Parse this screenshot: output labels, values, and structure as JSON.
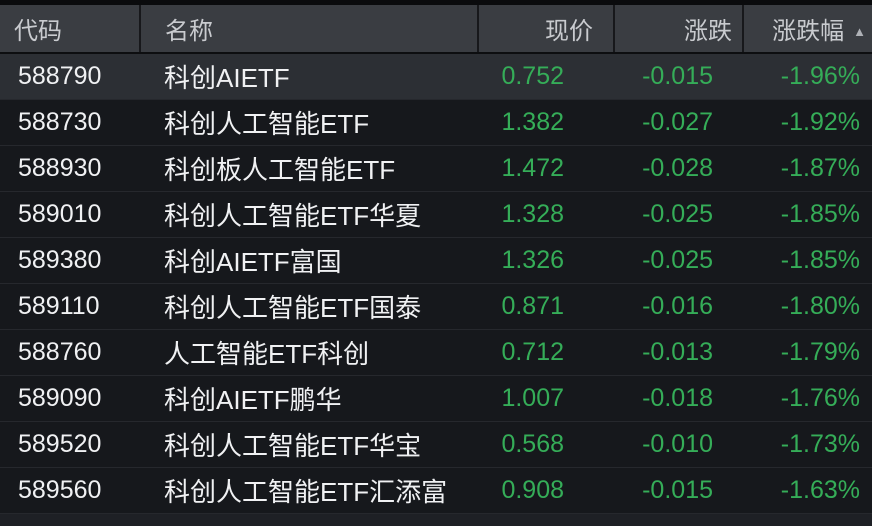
{
  "table": {
    "columns": [
      {
        "key": "code",
        "label": "代码"
      },
      {
        "key": "name",
        "label": "名称"
      },
      {
        "key": "price",
        "label": "现价"
      },
      {
        "key": "change",
        "label": "涨跌"
      },
      {
        "key": "change_pct",
        "label": "涨跌幅",
        "sorted": "asc"
      }
    ],
    "sort_indicator": "▲",
    "rows": [
      {
        "code": "588790",
        "name": "科创AIETF",
        "price": "0.752",
        "change": "-0.015",
        "change_pct": "-1.96%",
        "highlighted": true
      },
      {
        "code": "588730",
        "name": "科创人工智能ETF",
        "price": "1.382",
        "change": "-0.027",
        "change_pct": "-1.92%",
        "highlighted": false
      },
      {
        "code": "588930",
        "name": "科创板人工智能ETF",
        "price": "1.472",
        "change": "-0.028",
        "change_pct": "-1.87%",
        "highlighted": false
      },
      {
        "code": "589010",
        "name": "科创人工智能ETF华夏",
        "price": "1.328",
        "change": "-0.025",
        "change_pct": "-1.85%",
        "highlighted": false
      },
      {
        "code": "589380",
        "name": "科创AIETF富国",
        "price": "1.326",
        "change": "-0.025",
        "change_pct": "-1.85%",
        "highlighted": false
      },
      {
        "code": "589110",
        "name": "科创人工智能ETF国泰",
        "price": "0.871",
        "change": "-0.016",
        "change_pct": "-1.80%",
        "highlighted": false
      },
      {
        "code": "588760",
        "name": "人工智能ETF科创",
        "price": "0.712",
        "change": "-0.013",
        "change_pct": "-1.79%",
        "highlighted": false
      },
      {
        "code": "589090",
        "name": "科创AIETF鹏华",
        "price": "1.007",
        "change": "-0.018",
        "change_pct": "-1.76%",
        "highlighted": false
      },
      {
        "code": "589520",
        "name": "科创人工智能ETF华宝",
        "price": "0.568",
        "change": "-0.010",
        "change_pct": "-1.73%",
        "highlighted": false
      },
      {
        "code": "589560",
        "name": "科创人工智能ETF汇添富",
        "price": "0.908",
        "change": "-0.015",
        "change_pct": "-1.63%",
        "highlighted": false
      }
    ]
  },
  "colors": {
    "down_green": "#35ad58",
    "header_bg": "#3a3d42",
    "header_text": "#c9cbcf",
    "row_bg": "#16181c",
    "row_highlight_bg": "#2c2f34",
    "separator": "#26282d",
    "text_primary": "#f0f1f3",
    "page_bg": "#0a0b0d"
  }
}
